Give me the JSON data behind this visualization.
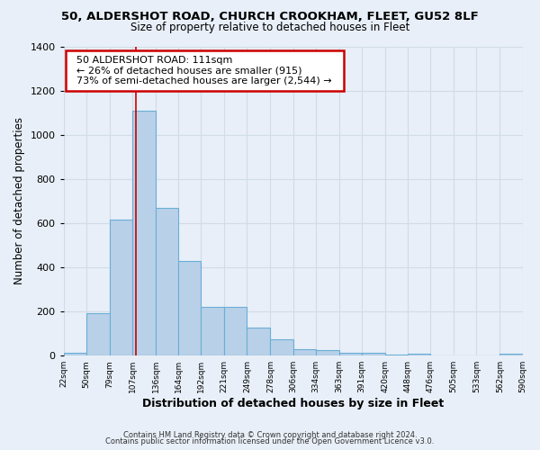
{
  "title": "50, ALDERSHOT ROAD, CHURCH CROOKHAM, FLEET, GU52 8LF",
  "subtitle": "Size of property relative to detached houses in Fleet",
  "xlabel": "Distribution of detached houses by size in Fleet",
  "ylabel": "Number of detached properties",
  "bar_color": "#b8d0e8",
  "bar_edge_color": "#6aaed6",
  "background_color": "#e8eff8",
  "grid_color": "#d0dce8",
  "bin_edges": [
    22,
    50,
    79,
    107,
    136,
    164,
    192,
    221,
    249,
    278,
    306,
    334,
    363,
    391,
    420,
    448,
    476,
    505,
    533,
    562,
    590
  ],
  "bin_labels": [
    "22sqm",
    "50sqm",
    "79sqm",
    "107sqm",
    "136sqm",
    "164sqm",
    "192sqm",
    "221sqm",
    "249sqm",
    "278sqm",
    "306sqm",
    "334sqm",
    "363sqm",
    "391sqm",
    "420sqm",
    "448sqm",
    "476sqm",
    "505sqm",
    "533sqm",
    "562sqm",
    "590sqm"
  ],
  "counts": [
    15,
    193,
    614,
    1107,
    670,
    430,
    220,
    220,
    128,
    75,
    30,
    27,
    15,
    12,
    5,
    10,
    0,
    0,
    0,
    10
  ],
  "ylim": [
    0,
    1400
  ],
  "yticks": [
    0,
    200,
    400,
    600,
    800,
    1000,
    1200,
    1400
  ],
  "property_size": 111,
  "annotation_title": "50 ALDERSHOT ROAD: 111sqm",
  "annotation_line1": "← 26% of detached houses are smaller (915)",
  "annotation_line2": "73% of semi-detached houses are larger (2,544) →",
  "annotation_box_color": "#ffffff",
  "annotation_box_edge": "#cc0000",
  "vline_color": "#cc0000",
  "footer1": "Contains HM Land Registry data © Crown copyright and database right 2024.",
  "footer2": "Contains public sector information licensed under the Open Government Licence v3.0."
}
